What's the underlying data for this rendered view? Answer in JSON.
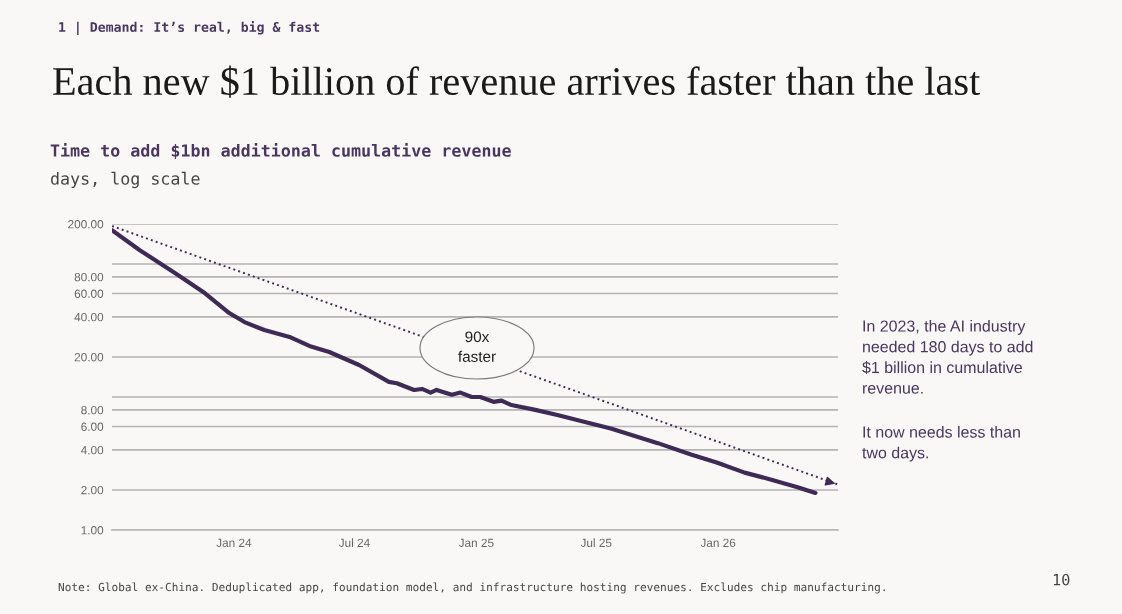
{
  "chart_data": {
    "type": "line",
    "title": "Each new $1 billion of revenue arrives faster than the last",
    "subtitle": "Time to add $1bn additional cumulative revenue",
    "ylabel": "days, log scale",
    "log": "y",
    "grid": "y",
    "marker": "none",
    "xlim": [
      "2023-07-01",
      "2026-07-01"
    ],
    "xticks": [
      {
        "value": "2024-01-01",
        "label": "Jan 24"
      },
      {
        "value": "2024-07-01",
        "label": "Jul 24"
      },
      {
        "value": "2025-01-01",
        "label": "Jan 25"
      },
      {
        "value": "2025-07-01",
        "label": "Jul 25"
      },
      {
        "value": "2026-01-01",
        "label": "Jan 26"
      }
    ],
    "ylim": [
      1,
      200
    ],
    "yticks": [
      {
        "value": 1,
        "label": "1.00"
      },
      {
        "value": 2,
        "label": "2.00"
      },
      {
        "value": 4,
        "label": "4.00"
      },
      {
        "value": 6,
        "label": "6.00"
      },
      {
        "value": 8,
        "label": "8.00"
      },
      {
        "value": 10,
        "label": null
      },
      {
        "value": 20,
        "label": "20.00"
      },
      {
        "value": 40,
        "label": "40.00"
      },
      {
        "value": 60,
        "label": "60.00"
      },
      {
        "value": 80,
        "label": "80.00"
      },
      {
        "value": 100,
        "label": null
      },
      {
        "value": 200,
        "label": "200.00"
      }
    ],
    "series": [
      {
        "color": "#3f2a56",
        "line_style": "solid",
        "x": [
          "2023-07-01",
          "2023-08-12",
          "2023-10-04",
          "2023-11-18",
          "2023-12-25",
          "2024-01-17",
          "2024-02-16",
          "2024-03-25",
          "2024-04-24",
          "2024-05-24",
          "2024-07-08",
          "2024-08-22",
          "2024-09-03",
          "2024-09-29",
          "2024-10-11",
          "2024-10-24",
          "2024-11-02",
          "2024-11-25",
          "2024-12-08",
          "2024-12-25",
          "2025-01-07",
          "2025-01-27",
          "2025-02-08",
          "2025-02-23",
          "2025-03-31",
          "2025-05-05",
          "2025-06-08",
          "2025-07-23",
          "2025-09-02",
          "2025-10-02",
          "2025-11-21",
          "2025-12-31",
          "2026-02-10",
          "2026-03-21",
          "2026-05-01",
          "2026-05-28"
        ],
        "values": [
          180,
          127,
          85.6,
          60.5,
          42.8,
          36.6,
          31.9,
          28.3,
          24.2,
          21.8,
          17.4,
          13.0,
          12.7,
          11.3,
          11.5,
          10.8,
          11.3,
          10.4,
          10.8,
          10.0,
          10.0,
          9.2,
          9.4,
          8.7,
          8.0,
          7.3,
          6.6,
          5.8,
          5.0,
          4.5,
          3.7,
          3.2,
          2.7,
          2.4,
          2.1,
          1.9
        ]
      },
      {
        "color": "#3f2a56",
        "line_style": "dotted",
        "x": [
          "2023-07-01",
          "2026-07-01"
        ],
        "values": [
          193,
          2.2
        ]
      }
    ],
    "annotations": [
      "1 | Demand: It’s real, big & fast",
      "90x\nfaster",
      "In 2023, the AI industry\nneeded 180 days to add\n$1 billion in cumulative\nrevenue.",
      "It now needs less than\ntwo days.",
      "Note: Global ex-China. Deduplicated app, foundation model, and infrastructure hosting revenues. Excludes chip manufacturing.",
      "10"
    ]
  }
}
